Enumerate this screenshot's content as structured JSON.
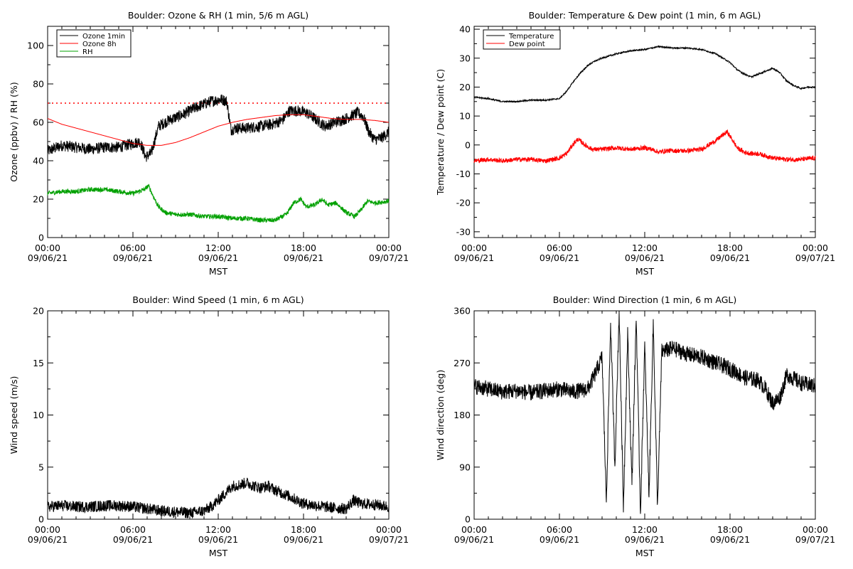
{
  "chart_data": [
    {
      "type": "line",
      "title": "Boulder: Ozone & RH (1 min, 5/6 m AGL)",
      "xlabel": "MST",
      "ylabel": "Ozone (ppbv) / RH (%)",
      "xlim": [
        0,
        24
      ],
      "ylim": [
        0,
        110
      ],
      "yticks": [
        0,
        20,
        40,
        60,
        80,
        100
      ],
      "xticks": [
        {
          "time": "00:00",
          "date": "09/06/21"
        },
        {
          "time": "06:00",
          "date": "09/06/21"
        },
        {
          "time": "12:00",
          "date": "09/06/21"
        },
        {
          "time": "18:00",
          "date": "09/06/21"
        },
        {
          "time": "00:00",
          "date": "09/07/21"
        }
      ],
      "legend_position": "top-left",
      "reference_line": {
        "y": 70,
        "color": "#ff0000",
        "style": "dotted"
      },
      "series": [
        {
          "name": "Ozone 1min",
          "color": "#000000",
          "noise": 3,
          "x": [
            0,
            1,
            2,
            3,
            4,
            5,
            6,
            6.5,
            6.9,
            7.3,
            7.8,
            8.5,
            9.5,
            10.5,
            11.5,
            12.2,
            12.6,
            12.9,
            13.2,
            14,
            15,
            15.8,
            16.5,
            17,
            17.6,
            18.2,
            18.6,
            19.5,
            20.2,
            21,
            21.8,
            22.2,
            22.6,
            23,
            23.5,
            24
          ],
          "y": [
            45,
            48,
            47,
            46,
            47,
            47,
            49,
            50,
            42,
            44,
            58,
            61,
            64,
            68,
            71,
            72,
            71,
            56,
            57,
            57,
            58,
            59,
            61,
            66,
            66,
            65,
            63,
            58,
            60,
            62,
            65,
            63,
            55,
            51,
            52,
            55
          ]
        },
        {
          "name": "Ozone 8h",
          "color": "#ff0000",
          "noise": 0,
          "x": [
            0,
            1,
            2,
            3,
            4,
            5,
            6,
            7,
            8,
            9,
            10,
            11,
            12,
            13,
            14,
            15,
            16,
            17,
            18,
            19,
            20,
            21,
            22,
            23,
            24
          ],
          "y": [
            62,
            59,
            57,
            55,
            53,
            51,
            49,
            48,
            48,
            49.5,
            52,
            55,
            58,
            60,
            61.5,
            62.5,
            63.5,
            64,
            64,
            63,
            62,
            61.5,
            61.5,
            61,
            60
          ]
        },
        {
          "name": "RH",
          "color": "#00a000",
          "noise": 1.2,
          "x": [
            0,
            1,
            2,
            3,
            4,
            5,
            6,
            6.8,
            7.1,
            7.4,
            7.8,
            8.3,
            9,
            10,
            11,
            12,
            13,
            14,
            15,
            16,
            16.8,
            17.3,
            17.8,
            18.2,
            18.8,
            19.3,
            19.7,
            20.3,
            21,
            21.6,
            22,
            22.5,
            23,
            24
          ],
          "y": [
            23,
            24,
            24,
            25,
            25,
            24,
            23,
            25,
            27,
            22,
            16,
            13,
            12,
            12,
            11,
            11,
            10,
            10,
            9,
            9,
            12,
            18,
            20,
            16,
            17,
            20,
            17,
            18,
            13,
            11,
            14,
            19,
            18,
            19
          ]
        }
      ]
    },
    {
      "type": "line",
      "title": "Boulder: Temperature & Dew point (1 min, 6 m AGL)",
      "xlabel": "MST",
      "ylabel": "Temperature / Dew point (C)",
      "xlim": [
        0,
        24
      ],
      "ylim": [
        -32,
        41
      ],
      "yticks": [
        -30,
        -20,
        -10,
        0,
        10,
        20,
        30,
        40
      ],
      "xticks": [
        {
          "time": "00:00",
          "date": "09/06/21"
        },
        {
          "time": "06:00",
          "date": "09/06/21"
        },
        {
          "time": "12:00",
          "date": "09/06/21"
        },
        {
          "time": "18:00",
          "date": "09/06/21"
        },
        {
          "time": "00:00",
          "date": "09/07/21"
        }
      ],
      "legend_position": "top-left",
      "series": [
        {
          "name": "Temperature",
          "color": "#000000",
          "noise": 0.25,
          "x": [
            0,
            1,
            2,
            3,
            4,
            5,
            6,
            6.5,
            7,
            7.5,
            8,
            8.5,
            9,
            10,
            11,
            12,
            13,
            14,
            15,
            16,
            17,
            17.5,
            18,
            18.5,
            19,
            19.5,
            20,
            20.5,
            21,
            21.5,
            22,
            22.5,
            23,
            23.5,
            24
          ],
          "y": [
            16.5,
            16,
            15,
            15,
            15.5,
            15.5,
            16,
            18.5,
            22,
            25,
            27.5,
            29,
            30,
            31.5,
            32.5,
            33,
            34,
            33.5,
            33.5,
            33,
            31.5,
            30,
            28.5,
            26,
            24.5,
            23.5,
            24.5,
            25.5,
            26.5,
            25,
            22,
            20.5,
            19.5,
            20,
            20
          ]
        },
        {
          "name": "Dew point",
          "color": "#ff0000",
          "noise": 0.8,
          "x": [
            0,
            1,
            2,
            3,
            4,
            5,
            6,
            6.5,
            7,
            7.3,
            7.8,
            8.3,
            9,
            10,
            11,
            12,
            12.5,
            13,
            13.5,
            14,
            15,
            16,
            16.5,
            17,
            17.5,
            17.8,
            18.2,
            18.5,
            19,
            19.5,
            20,
            21,
            22,
            23,
            24
          ],
          "y": [
            -5.5,
            -5,
            -5.5,
            -5,
            -5,
            -5.5,
            -4.5,
            -3,
            0.5,
            2,
            0,
            -1.5,
            -1.5,
            -1,
            -1.5,
            -1,
            -1.5,
            -2.5,
            -2,
            -2,
            -2,
            -1.5,
            0,
            1.5,
            3.5,
            4.5,
            1.5,
            -1,
            -2.5,
            -3,
            -3,
            -4.5,
            -5,
            -5,
            -4.5
          ]
        }
      ]
    },
    {
      "type": "line",
      "title": "Boulder: Wind Speed (1 min, 6 m AGL)",
      "xlabel": "MST",
      "ylabel": "Wind speed (m/s)",
      "xlim": [
        0,
        24
      ],
      "ylim": [
        0,
        20
      ],
      "yticks": [
        0,
        5,
        10,
        15,
        20
      ],
      "xticks": [
        {
          "time": "00:00",
          "date": "09/06/21"
        },
        {
          "time": "06:00",
          "date": "09/06/21"
        },
        {
          "time": "12:00",
          "date": "09/06/21"
        },
        {
          "time": "18:00",
          "date": "09/06/21"
        },
        {
          "time": "00:00",
          "date": "09/07/21"
        }
      ],
      "series": [
        {
          "name": "",
          "color": "#000000",
          "noise": 0.55,
          "x": [
            0,
            1,
            2,
            3,
            4,
            5,
            6,
            7,
            8,
            9,
            10,
            11,
            11.5,
            12,
            12.5,
            13,
            13.5,
            14,
            14.5,
            15,
            15.5,
            16,
            17,
            18,
            19,
            20,
            21,
            21.5,
            22,
            23,
            24
          ],
          "y": [
            1.2,
            1.3,
            1.2,
            1.2,
            1.3,
            1.3,
            1.2,
            1,
            0.8,
            0.7,
            0.6,
            0.8,
            1.2,
            1.8,
            2.5,
            3.2,
            3.3,
            3.5,
            3.2,
            3,
            3.2,
            2.8,
            2.2,
            1.5,
            1.3,
            1.1,
            1,
            1.8,
            1.5,
            1.4,
            1.2
          ]
        }
      ]
    },
    {
      "type": "line",
      "title": "Boulder: Wind Direction (1 min, 6 m AGL)",
      "xlabel": "MST",
      "ylabel": "Wind direction (deg)",
      "xlim": [
        0,
        24
      ],
      "ylim": [
        0,
        360
      ],
      "yticks": [
        0,
        90,
        180,
        270,
        360
      ],
      "xticks": [
        {
          "time": "00:00",
          "date": "09/06/21"
        },
        {
          "time": "06:00",
          "date": "09/06/21"
        },
        {
          "time": "12:00",
          "date": "09/06/21"
        },
        {
          "time": "18:00",
          "date": "09/06/21"
        },
        {
          "time": "00:00",
          "date": "09/07/21"
        }
      ],
      "series": [
        {
          "name": "",
          "color": "#000000",
          "noise": 14,
          "x": [
            0,
            1,
            2,
            3,
            4,
            5,
            6,
            7,
            8,
            8.5,
            9,
            9.3,
            9.6,
            9.9,
            10.2,
            10.5,
            10.8,
            11.1,
            11.4,
            11.7,
            12,
            12.3,
            12.6,
            12.9,
            13.2,
            14,
            15,
            16,
            17,
            18,
            19,
            20,
            20.5,
            21,
            21.5,
            22,
            23,
            24
          ],
          "y": [
            230,
            225,
            220,
            222,
            218,
            222,
            225,
            220,
            225,
            250,
            280,
            30,
            340,
            90,
            360,
            20,
            320,
            60,
            350,
            10,
            300,
            40,
            340,
            20,
            290,
            295,
            285,
            280,
            270,
            260,
            245,
            240,
            225,
            200,
            210,
            250,
            235,
            230
          ]
        }
      ]
    }
  ]
}
